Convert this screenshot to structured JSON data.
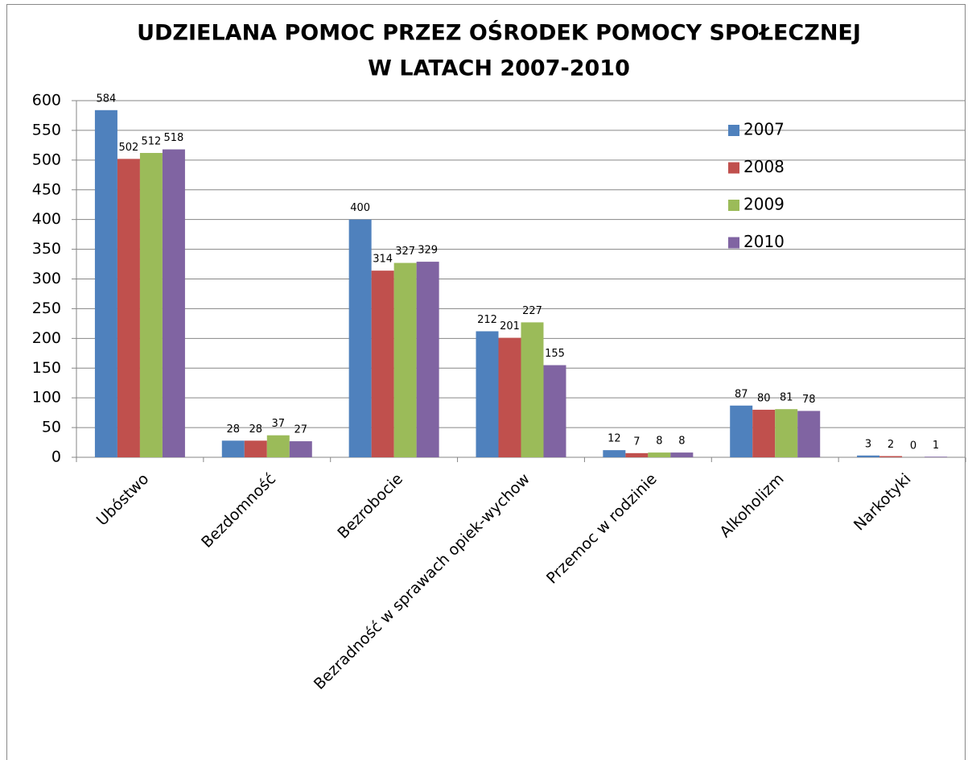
{
  "chart_data": {
    "type": "bar",
    "title": [
      "UDZIELANA POMOC PRZEZ OŚRODEK POMOCY SPOŁECZNEJ",
      "W LATACH 2007-2010"
    ],
    "categories": [
      "Ubóstwo",
      "Bezdomność",
      "Bezrobocie",
      "Bezradność w sprawach opiek-wychow",
      "Przemoc w rodzinie",
      "Alkoholizm",
      "Narkotyki"
    ],
    "series": [
      {
        "name": "2007",
        "color": "#4f81bd",
        "values": [
          584,
          28,
          400,
          212,
          12,
          87,
          3
        ]
      },
      {
        "name": "2008",
        "color": "#c0504d",
        "values": [
          502,
          28,
          314,
          201,
          7,
          80,
          2
        ]
      },
      {
        "name": "2009",
        "color": "#9bbb59",
        "values": [
          512,
          37,
          327,
          227,
          8,
          81,
          0
        ]
      },
      {
        "name": "2010",
        "color": "#8064a2",
        "values": [
          518,
          27,
          329,
          155,
          8,
          78,
          1
        ]
      }
    ],
    "ylim": [
      0,
      600
    ],
    "yticks": [
      0,
      50,
      100,
      150,
      200,
      250,
      300,
      350,
      400,
      450,
      500,
      550,
      600
    ],
    "grid": true,
    "legend": "right"
  }
}
